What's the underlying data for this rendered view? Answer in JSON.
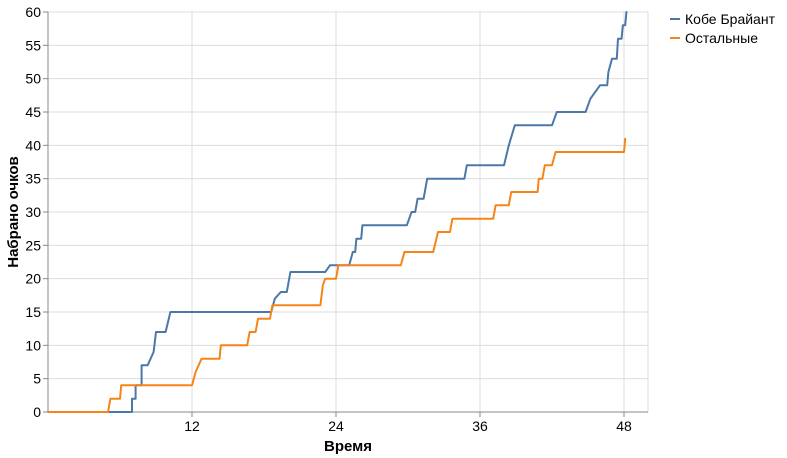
{
  "chart_data": {
    "type": "line",
    "xlabel": "Время",
    "ylabel": "Набрано очков",
    "xlim": [
      0,
      50
    ],
    "ylim": [
      0,
      60
    ],
    "x_ticks": [
      12,
      24,
      36,
      48
    ],
    "y_ticks": [
      0,
      5,
      10,
      15,
      20,
      25,
      30,
      35,
      40,
      45,
      50,
      55,
      60
    ],
    "grid": true,
    "legend_position": "top-right",
    "series": [
      {
        "name": "Кобе Брайант",
        "color": "#4c78a8",
        "points": [
          [
            0,
            0
          ],
          [
            7.0,
            0
          ],
          [
            7.0,
            2
          ],
          [
            7.3,
            2
          ],
          [
            7.3,
            4
          ],
          [
            7.8,
            4
          ],
          [
            7.8,
            7
          ],
          [
            8.3,
            7
          ],
          [
            8.8,
            9
          ],
          [
            9.0,
            12
          ],
          [
            9.8,
            12
          ],
          [
            10.2,
            15
          ],
          [
            18.6,
            15
          ],
          [
            18.9,
            17
          ],
          [
            19.4,
            18
          ],
          [
            19.9,
            18
          ],
          [
            20.2,
            21
          ],
          [
            23.1,
            21
          ],
          [
            23.5,
            22
          ],
          [
            25.1,
            22
          ],
          [
            25.4,
            24
          ],
          [
            25.6,
            24
          ],
          [
            25.7,
            26
          ],
          [
            26.1,
            26
          ],
          [
            26.2,
            28
          ],
          [
            29.9,
            28
          ],
          [
            30.3,
            30
          ],
          [
            30.6,
            30
          ],
          [
            30.8,
            32
          ],
          [
            31.3,
            32
          ],
          [
            31.6,
            35
          ],
          [
            34.7,
            35
          ],
          [
            34.9,
            37
          ],
          [
            38.0,
            37
          ],
          [
            38.4,
            40
          ],
          [
            38.9,
            43
          ],
          [
            42.0,
            43
          ],
          [
            42.4,
            45
          ],
          [
            44.8,
            45
          ],
          [
            45.2,
            47
          ],
          [
            46.0,
            49
          ],
          [
            46.6,
            49
          ],
          [
            46.7,
            51
          ],
          [
            47.0,
            53
          ],
          [
            47.4,
            53
          ],
          [
            47.5,
            56
          ],
          [
            47.8,
            56
          ],
          [
            47.9,
            58
          ],
          [
            48.1,
            58
          ],
          [
            48.2,
            60
          ]
        ]
      },
      {
        "name": "Остальные",
        "color": "#f58518",
        "points": [
          [
            0,
            0
          ],
          [
            5.0,
            0
          ],
          [
            5.2,
            2
          ],
          [
            6.0,
            2
          ],
          [
            6.1,
            4
          ],
          [
            12.0,
            4
          ],
          [
            12.3,
            6
          ],
          [
            12.8,
            8
          ],
          [
            14.3,
            8
          ],
          [
            14.4,
            10
          ],
          [
            16.6,
            10
          ],
          [
            16.8,
            12
          ],
          [
            17.3,
            12
          ],
          [
            17.5,
            14
          ],
          [
            18.5,
            14
          ],
          [
            18.7,
            16
          ],
          [
            22.7,
            16
          ],
          [
            22.9,
            19
          ],
          [
            23.1,
            20
          ],
          [
            24.0,
            20
          ],
          [
            24.2,
            22
          ],
          [
            29.4,
            22
          ],
          [
            29.7,
            24
          ],
          [
            32.1,
            24
          ],
          [
            32.5,
            27
          ],
          [
            33.5,
            27
          ],
          [
            33.7,
            29
          ],
          [
            37.1,
            29
          ],
          [
            37.3,
            31
          ],
          [
            38.4,
            31
          ],
          [
            38.6,
            33
          ],
          [
            40.8,
            33
          ],
          [
            40.9,
            35
          ],
          [
            41.2,
            35
          ],
          [
            41.4,
            37
          ],
          [
            42.0,
            37
          ],
          [
            42.3,
            39
          ],
          [
            48.0,
            39
          ],
          [
            48.1,
            41
          ]
        ]
      }
    ]
  }
}
